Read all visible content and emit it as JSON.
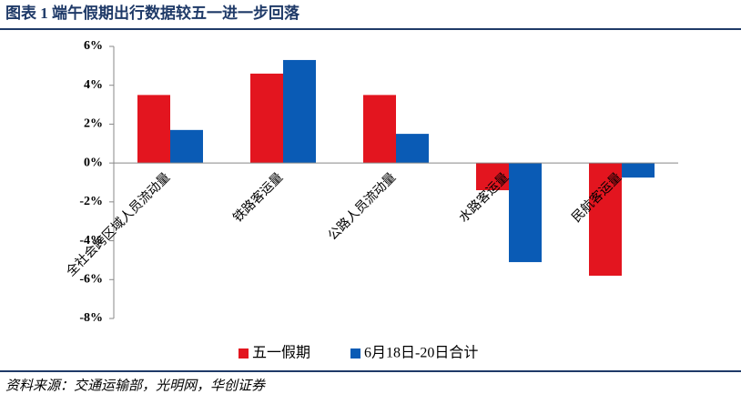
{
  "header": {
    "title": "图表 1   端午假期出行数据较五一进一步回落"
  },
  "chart_data": {
    "type": "bar",
    "categories": [
      "全社会跨区域人员流动量",
      "铁路客运量",
      "公路人员流动量",
      "水路客运量",
      "民航客运量"
    ],
    "series": [
      {
        "name": "五一假期",
        "color": "#e3151f",
        "values": [
          3.5,
          4.6,
          3.5,
          -1.4,
          -5.8
        ]
      },
      {
        "name": "6月18日-20日合计",
        "color": "#0a5bb5",
        "values": [
          1.7,
          5.3,
          1.5,
          -5.1,
          -0.75
        ]
      }
    ],
    "ylim": [
      -8,
      6
    ],
    "yticks": [
      {
        "value": -8,
        "label": "-8%"
      },
      {
        "value": -6,
        "label": "-6%"
      },
      {
        "value": -4,
        "label": "-4%"
      },
      {
        "value": -2,
        "label": "-2%"
      },
      {
        "value": 0,
        "label": "0%"
      },
      {
        "value": 2,
        "label": "2%"
      },
      {
        "value": 4,
        "label": "4%"
      },
      {
        "value": 6,
        "label": "6%"
      }
    ],
    "grid": false,
    "legend": "bottom"
  },
  "footer": {
    "source": "资料来源：交通运输部，光明网，华创证券"
  }
}
